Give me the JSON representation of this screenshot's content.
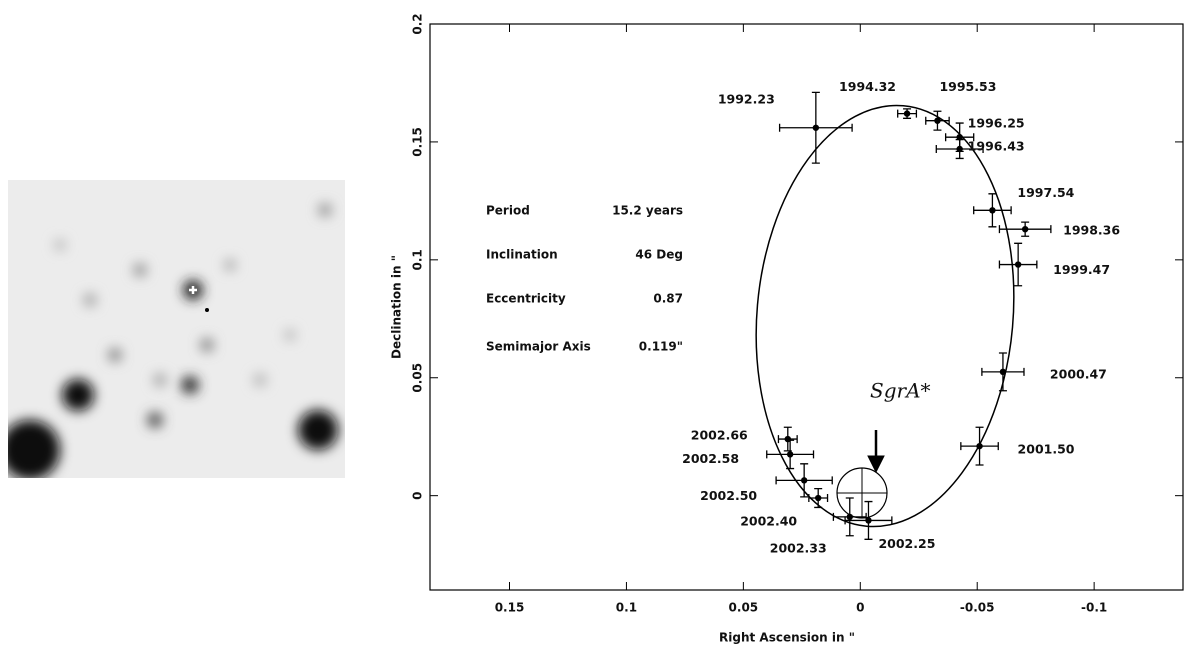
{
  "chart_data": {
    "type": "scatter",
    "x_label": "Right Ascension in \"",
    "y_label": "Declination in \"",
    "xlim": [
      0.184,
      -0.138
    ],
    "ylim": [
      -0.04,
      0.2
    ],
    "xticks": [
      0.15,
      0.1,
      0.05,
      0,
      -0.05,
      -0.1
    ],
    "yticks": [
      0,
      0.05,
      0.1,
      0.15,
      0.2
    ],
    "point_labels": [
      "1992.23",
      "1994.32",
      "1995.53",
      "1996.25",
      "1996.43",
      "1997.54",
      "1998.36",
      "1999.47",
      "2000.47",
      "2001.50",
      "2002.25",
      "2002.33",
      "2002.40",
      "2002.50",
      "2002.58",
      "2002.66"
    ],
    "x": [
      0.019,
      -0.02,
      -0.033,
      -0.0425,
      -0.0425,
      -0.0565,
      -0.0705,
      -0.0675,
      -0.061,
      -0.051,
      -0.0035,
      0.0045,
      0.018,
      0.024,
      0.03,
      0.031
    ],
    "values": [
      0.156,
      0.162,
      0.159,
      0.152,
      0.147,
      0.121,
      0.113,
      0.098,
      0.0525,
      0.021,
      -0.0105,
      -0.009,
      -0.001,
      0.0065,
      0.0175,
      0.024
    ],
    "xerr": [
      0.0155,
      0.004,
      0.005,
      0.006,
      0.01,
      0.008,
      0.011,
      0.008,
      0.009,
      0.008,
      0.01,
      0.007,
      0.004,
      0.012,
      0.01,
      0.004
    ],
    "yerr": [
      0.015,
      0.002,
      0.004,
      0.006,
      0.004,
      0.007,
      0.003,
      0.009,
      0.008,
      0.008,
      0.008,
      0.008,
      0.004,
      0.007,
      0.006,
      0.005
    ],
    "color": "#000000",
    "annotations": {
      "marker": "SgrA*",
      "parameters": [
        [
          "Period",
          "15.2 years"
        ],
        [
          "Inclination",
          "46 Deg"
        ],
        [
          "Eccentricity",
          "0.87"
        ],
        [
          "Semimajor Axis",
          "0.119\""
        ]
      ]
    }
  }
}
